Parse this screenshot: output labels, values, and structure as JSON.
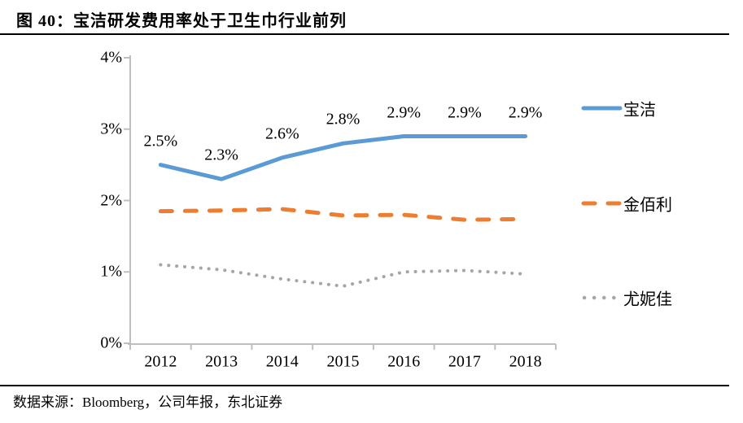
{
  "header": {
    "title": "图 40：宝洁研发费用率处于卫生巾行业前列"
  },
  "footer": {
    "source": "数据来源：Bloomberg，公司年报，东北证券"
  },
  "chart_data": {
    "type": "line",
    "title": "宝洁研发费用率处于卫生巾行业前列",
    "xlabel": "",
    "ylabel": "",
    "categories": [
      "2012",
      "2013",
      "2014",
      "2015",
      "2016",
      "2017",
      "2018"
    ],
    "series": [
      {
        "name": "宝洁",
        "color": "#5B9BD5",
        "style": "solid",
        "unit": "%",
        "values": [
          2.5,
          2.3,
          2.6,
          2.8,
          2.9,
          2.9,
          2.9
        ],
        "point_labels": [
          "2.5%",
          "2.3%",
          "2.6%",
          "2.8%",
          "2.9%",
          "2.9%",
          "2.9%"
        ]
      },
      {
        "name": "金佰利",
        "color": "#ED7D31",
        "style": "dashed",
        "unit": "%",
        "values": [
          1.85,
          1.86,
          1.88,
          1.79,
          1.8,
          1.73,
          1.74
        ]
      },
      {
        "name": "尤妮佳",
        "color": "#A6A6A6",
        "style": "dotted",
        "unit": "%",
        "values": [
          1.1,
          1.03,
          0.9,
          0.8,
          1.0,
          1.02,
          0.97
        ]
      }
    ],
    "ylim": [
      0,
      4
    ],
    "yticks": [
      0,
      1,
      2,
      3,
      4
    ],
    "ytick_labels": [
      "0%",
      "1%",
      "2%",
      "3%",
      "4%"
    ],
    "grid": false,
    "legend_position": "right",
    "axis_color": "#BFBFBF"
  }
}
